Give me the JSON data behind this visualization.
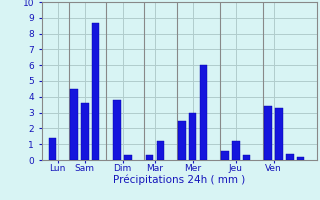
{
  "bars": [
    {
      "x": 1,
      "height": 1.4
    },
    {
      "x": 3,
      "height": 4.5
    },
    {
      "x": 4,
      "height": 3.6
    },
    {
      "x": 5,
      "height": 8.7
    },
    {
      "x": 7,
      "height": 3.8
    },
    {
      "x": 8,
      "height": 0.3
    },
    {
      "x": 10,
      "height": 0.3
    },
    {
      "x": 11,
      "height": 1.2
    },
    {
      "x": 13,
      "height": 2.5
    },
    {
      "x": 14,
      "height": 3.0
    },
    {
      "x": 15,
      "height": 6.0
    },
    {
      "x": 17,
      "height": 0.6
    },
    {
      "x": 18,
      "height": 1.2
    },
    {
      "x": 19,
      "height": 0.3
    },
    {
      "x": 21,
      "height": 3.4
    },
    {
      "x": 22,
      "height": 3.3
    },
    {
      "x": 23,
      "height": 0.4
    },
    {
      "x": 24,
      "height": 0.2
    }
  ],
  "bar_width": 0.7,
  "bar_color": "#1515DD",
  "bar_edge_color": "#0000AA",
  "background_color": "#D8F4F4",
  "grid_color": "#B0CCCC",
  "xlabel": "Précipitations 24h ( mm )",
  "xlabel_color": "#1515BB",
  "tick_labels": [
    {
      "x": 1.5,
      "label": "Lun"
    },
    {
      "x": 4.0,
      "label": "Sam"
    },
    {
      "x": 7.5,
      "label": "Dim"
    },
    {
      "x": 10.5,
      "label": "Mar"
    },
    {
      "x": 14.0,
      "label": "Mer"
    },
    {
      "x": 18.0,
      "label": "Jeu"
    },
    {
      "x": 21.5,
      "label": "Ven"
    }
  ],
  "separator_positions": [
    2.5,
    6.0,
    9.5,
    12.5,
    16.5,
    20.5
  ],
  "ylim": [
    0,
    10
  ],
  "yticks": [
    0,
    1,
    2,
    3,
    4,
    5,
    6,
    7,
    8,
    9,
    10
  ],
  "xlim": [
    0,
    25.5
  ],
  "tick_color": "#1515BB",
  "axis_line_color": "#888888"
}
